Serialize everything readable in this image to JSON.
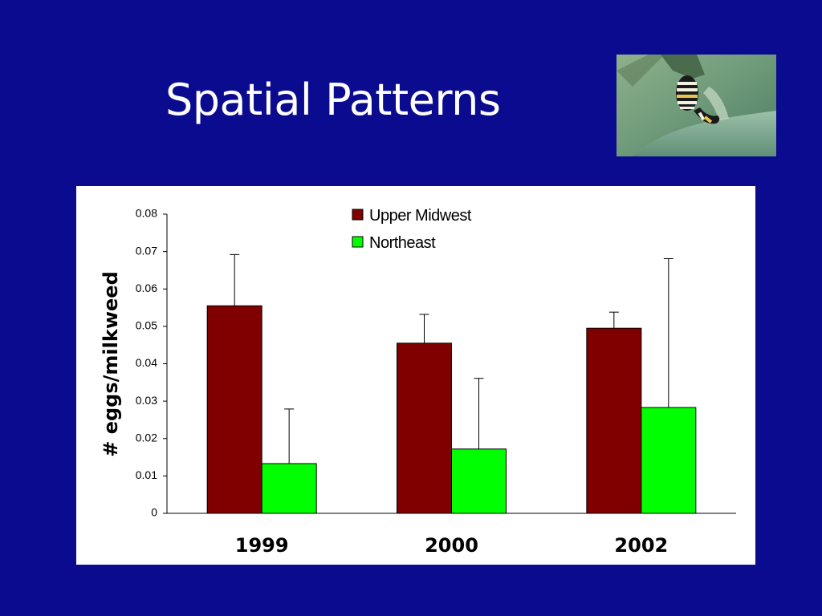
{
  "slide": {
    "title": "Spatial Patterns",
    "background_color": "#0b0b8f",
    "photo": "monarch-caterpillar-on-milkweed"
  },
  "chart_data": {
    "type": "bar",
    "title": "",
    "xlabel": "",
    "ylabel": "# eggs/milkweed",
    "categories": [
      "1999",
      "2000",
      "2002"
    ],
    "ylim": [
      0,
      0.08
    ],
    "yticks": [
      0,
      0.01,
      0.02,
      0.03,
      0.04,
      0.05,
      0.06,
      0.07,
      0.08
    ],
    "ytick_labels": [
      "0",
      "0.01",
      "0.02",
      "0.03",
      "0.04",
      "0.05",
      "0.06",
      "0.07",
      "0.08"
    ],
    "grid": false,
    "legend_position": "top-center",
    "error_bars": "upper only",
    "series": [
      {
        "name": "Upper Midwest",
        "color": "#800000",
        "values": [
          0.0555,
          0.0455,
          0.0495
        ],
        "error_upper": [
          0.0692,
          0.0532,
          0.0538
        ]
      },
      {
        "name": "Northeast",
        "color": "#00ff00",
        "values": [
          0.0133,
          0.0172,
          0.0283
        ],
        "error_upper": [
          0.0279,
          0.0361,
          0.0681
        ]
      }
    ]
  }
}
